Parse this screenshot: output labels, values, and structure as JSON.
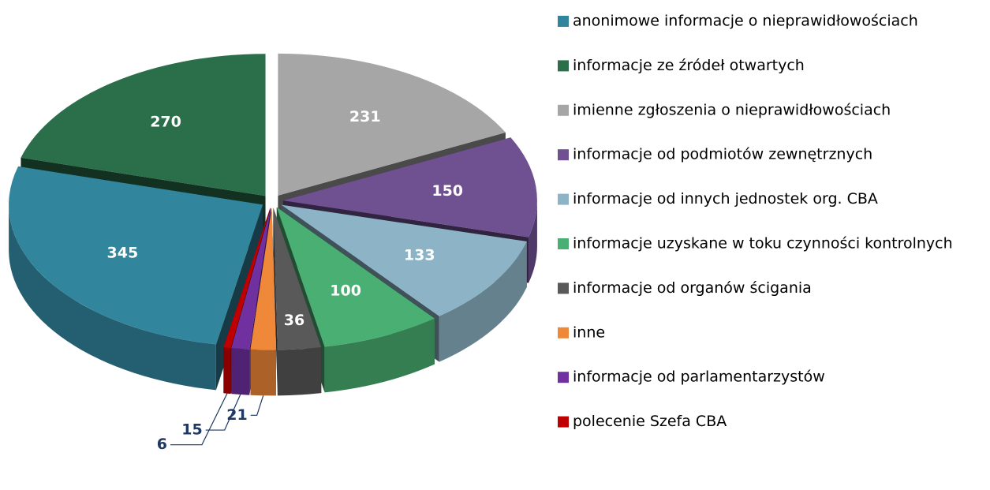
{
  "chart_data": {
    "type": "pie",
    "categories": [
      "anonimowe informacje o nieprawidłowościach",
      "informacje ze źródeł otwartych",
      "imienne zgłoszenia o nieprawidłowościach",
      "informacje od podmiotów zewnętrznych",
      "informacje od innych jednostek org. CBA",
      "informacje uzyskane w toku czynności kontrolnych",
      "informacje od organów ścigania",
      "inne",
      "informacje od parlamentarzystów",
      "polecenie Szefa CBA"
    ],
    "values": [
      345,
      270,
      231,
      150,
      133,
      100,
      36,
      21,
      15,
      6
    ],
    "colors": [
      "#31859c",
      "#2a6e4a",
      "#a6a6a6",
      "#6f5091",
      "#8db4c6",
      "#4aaf72",
      "#595959",
      "#f0883a",
      "#7030a0",
      "#c00000"
    ],
    "legend": "right"
  }
}
